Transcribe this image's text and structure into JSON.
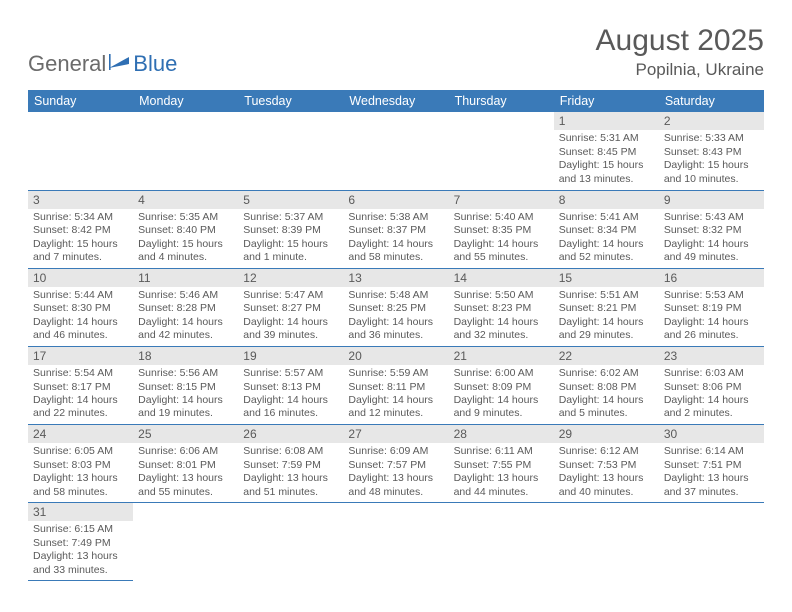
{
  "brand": {
    "part1": "General",
    "part2": "Blue"
  },
  "title": "August 2025",
  "location": "Popilnia, Ukraine",
  "colors": {
    "header_bg": "#3a7ab8",
    "header_text": "#ffffff",
    "daynum_bg": "#e7e7e7",
    "text": "#5a5a5a",
    "rule": "#3a7ab8",
    "brand_blue": "#2f6fb3"
  },
  "weekdays": [
    "Sunday",
    "Monday",
    "Tuesday",
    "Wednesday",
    "Thursday",
    "Friday",
    "Saturday"
  ],
  "first_weekday_index": 5,
  "days": [
    {
      "n": 1,
      "sunrise": "5:31 AM",
      "sunset": "8:45 PM",
      "daylight": "15 hours and 13 minutes."
    },
    {
      "n": 2,
      "sunrise": "5:33 AM",
      "sunset": "8:43 PM",
      "daylight": "15 hours and 10 minutes."
    },
    {
      "n": 3,
      "sunrise": "5:34 AM",
      "sunset": "8:42 PM",
      "daylight": "15 hours and 7 minutes."
    },
    {
      "n": 4,
      "sunrise": "5:35 AM",
      "sunset": "8:40 PM",
      "daylight": "15 hours and 4 minutes."
    },
    {
      "n": 5,
      "sunrise": "5:37 AM",
      "sunset": "8:39 PM",
      "daylight": "15 hours and 1 minute."
    },
    {
      "n": 6,
      "sunrise": "5:38 AM",
      "sunset": "8:37 PM",
      "daylight": "14 hours and 58 minutes."
    },
    {
      "n": 7,
      "sunrise": "5:40 AM",
      "sunset": "8:35 PM",
      "daylight": "14 hours and 55 minutes."
    },
    {
      "n": 8,
      "sunrise": "5:41 AM",
      "sunset": "8:34 PM",
      "daylight": "14 hours and 52 minutes."
    },
    {
      "n": 9,
      "sunrise": "5:43 AM",
      "sunset": "8:32 PM",
      "daylight": "14 hours and 49 minutes."
    },
    {
      "n": 10,
      "sunrise": "5:44 AM",
      "sunset": "8:30 PM",
      "daylight": "14 hours and 46 minutes."
    },
    {
      "n": 11,
      "sunrise": "5:46 AM",
      "sunset": "8:28 PM",
      "daylight": "14 hours and 42 minutes."
    },
    {
      "n": 12,
      "sunrise": "5:47 AM",
      "sunset": "8:27 PM",
      "daylight": "14 hours and 39 minutes."
    },
    {
      "n": 13,
      "sunrise": "5:48 AM",
      "sunset": "8:25 PM",
      "daylight": "14 hours and 36 minutes."
    },
    {
      "n": 14,
      "sunrise": "5:50 AM",
      "sunset": "8:23 PM",
      "daylight": "14 hours and 32 minutes."
    },
    {
      "n": 15,
      "sunrise": "5:51 AM",
      "sunset": "8:21 PM",
      "daylight": "14 hours and 29 minutes."
    },
    {
      "n": 16,
      "sunrise": "5:53 AM",
      "sunset": "8:19 PM",
      "daylight": "14 hours and 26 minutes."
    },
    {
      "n": 17,
      "sunrise": "5:54 AM",
      "sunset": "8:17 PM",
      "daylight": "14 hours and 22 minutes."
    },
    {
      "n": 18,
      "sunrise": "5:56 AM",
      "sunset": "8:15 PM",
      "daylight": "14 hours and 19 minutes."
    },
    {
      "n": 19,
      "sunrise": "5:57 AM",
      "sunset": "8:13 PM",
      "daylight": "14 hours and 16 minutes."
    },
    {
      "n": 20,
      "sunrise": "5:59 AM",
      "sunset": "8:11 PM",
      "daylight": "14 hours and 12 minutes."
    },
    {
      "n": 21,
      "sunrise": "6:00 AM",
      "sunset": "8:09 PM",
      "daylight": "14 hours and 9 minutes."
    },
    {
      "n": 22,
      "sunrise": "6:02 AM",
      "sunset": "8:08 PM",
      "daylight": "14 hours and 5 minutes."
    },
    {
      "n": 23,
      "sunrise": "6:03 AM",
      "sunset": "8:06 PM",
      "daylight": "14 hours and 2 minutes."
    },
    {
      "n": 24,
      "sunrise": "6:05 AM",
      "sunset": "8:03 PM",
      "daylight": "13 hours and 58 minutes."
    },
    {
      "n": 25,
      "sunrise": "6:06 AM",
      "sunset": "8:01 PM",
      "daylight": "13 hours and 55 minutes."
    },
    {
      "n": 26,
      "sunrise": "6:08 AM",
      "sunset": "7:59 PM",
      "daylight": "13 hours and 51 minutes."
    },
    {
      "n": 27,
      "sunrise": "6:09 AM",
      "sunset": "7:57 PM",
      "daylight": "13 hours and 48 minutes."
    },
    {
      "n": 28,
      "sunrise": "6:11 AM",
      "sunset": "7:55 PM",
      "daylight": "13 hours and 44 minutes."
    },
    {
      "n": 29,
      "sunrise": "6:12 AM",
      "sunset": "7:53 PM",
      "daylight": "13 hours and 40 minutes."
    },
    {
      "n": 30,
      "sunrise": "6:14 AM",
      "sunset": "7:51 PM",
      "daylight": "13 hours and 37 minutes."
    },
    {
      "n": 31,
      "sunrise": "6:15 AM",
      "sunset": "7:49 PM",
      "daylight": "13 hours and 33 minutes."
    }
  ],
  "labels": {
    "sunrise": "Sunrise:",
    "sunset": "Sunset:",
    "daylight": "Daylight:"
  }
}
